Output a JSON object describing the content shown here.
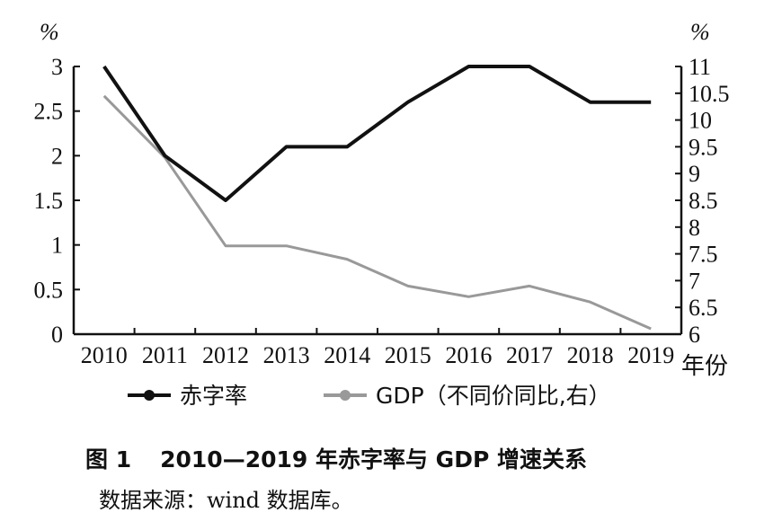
{
  "chart_data": {
    "type": "line",
    "categories": [
      "2010",
      "2011",
      "2012",
      "2013",
      "2014",
      "2015",
      "2016",
      "2017",
      "2018",
      "2019"
    ],
    "xlabel": "年份",
    "left_axis": {
      "unit": "%",
      "ylim": [
        0,
        3
      ],
      "ticks": [
        "0",
        "0.5",
        "1",
        "1.5",
        "2",
        "2.5",
        "3"
      ]
    },
    "right_axis": {
      "unit": "%",
      "ylim": [
        6,
        11
      ],
      "ticks": [
        "6",
        "6.5",
        "7",
        "7.5",
        "8",
        "8.5",
        "9",
        "9.5",
        "10",
        "10.5",
        "11"
      ]
    },
    "series": [
      {
        "name": "赤字率",
        "axis": "left",
        "color": "#111111",
        "values": [
          3.0,
          2.0,
          1.5,
          2.1,
          2.1,
          2.6,
          3.0,
          3.0,
          2.6,
          2.6
        ]
      },
      {
        "name": "GDP（不同价同比,右）",
        "axis": "right",
        "color": "#999999",
        "values": [
          10.45,
          9.3,
          7.65,
          7.65,
          7.4,
          6.9,
          6.7,
          6.9,
          6.6,
          6.1
        ]
      }
    ],
    "grid": false,
    "legend_position": "bottom"
  },
  "caption": {
    "number": "图 1",
    "title": "2010—2019 年赤字率与 GDP 增速关系"
  },
  "source": "数据来源：wind 数据库。"
}
